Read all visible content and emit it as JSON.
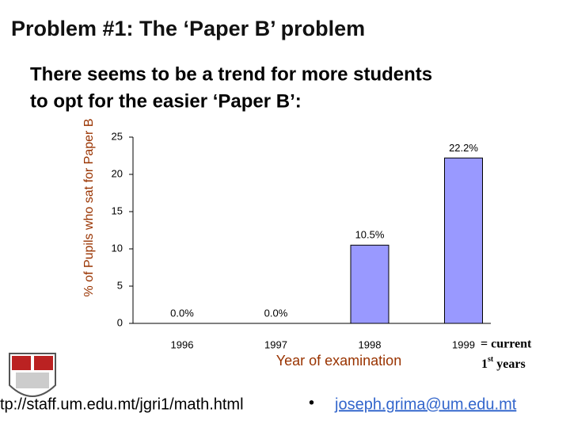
{
  "slide_title": "Problem #1: The ‘Paper B’ problem",
  "subtitle_lines": [
    "There seems to be a trend for more students",
    "to opt for the easier ‘Paper B’:"
  ],
  "chart_data": {
    "type": "bar",
    "y_label": "% of Pupils who sat for Paper B",
    "x_label": "Year of examination",
    "categories": [
      "1996",
      "1997",
      "1998",
      "1999"
    ],
    "values": [
      0,
      0,
      10.5,
      22.2
    ],
    "value_labels": [
      "0.0%",
      "0.0%",
      "10.5%",
      "22.2%"
    ],
    "color": "#9999ff",
    "ylim": [
      0,
      25
    ],
    "yticks": [
      0,
      5,
      10,
      15,
      20,
      25
    ],
    "grid": false
  },
  "annotation": {
    "line1": "= current",
    "ordinal": "1",
    "ordinal_suffix": "st",
    "rest": "years"
  },
  "footer": {
    "url": "tp://staff.um.edu.mt/jgri1/math.html",
    "separator": "•",
    "email": "joseph.grima@um.edu.mt"
  }
}
